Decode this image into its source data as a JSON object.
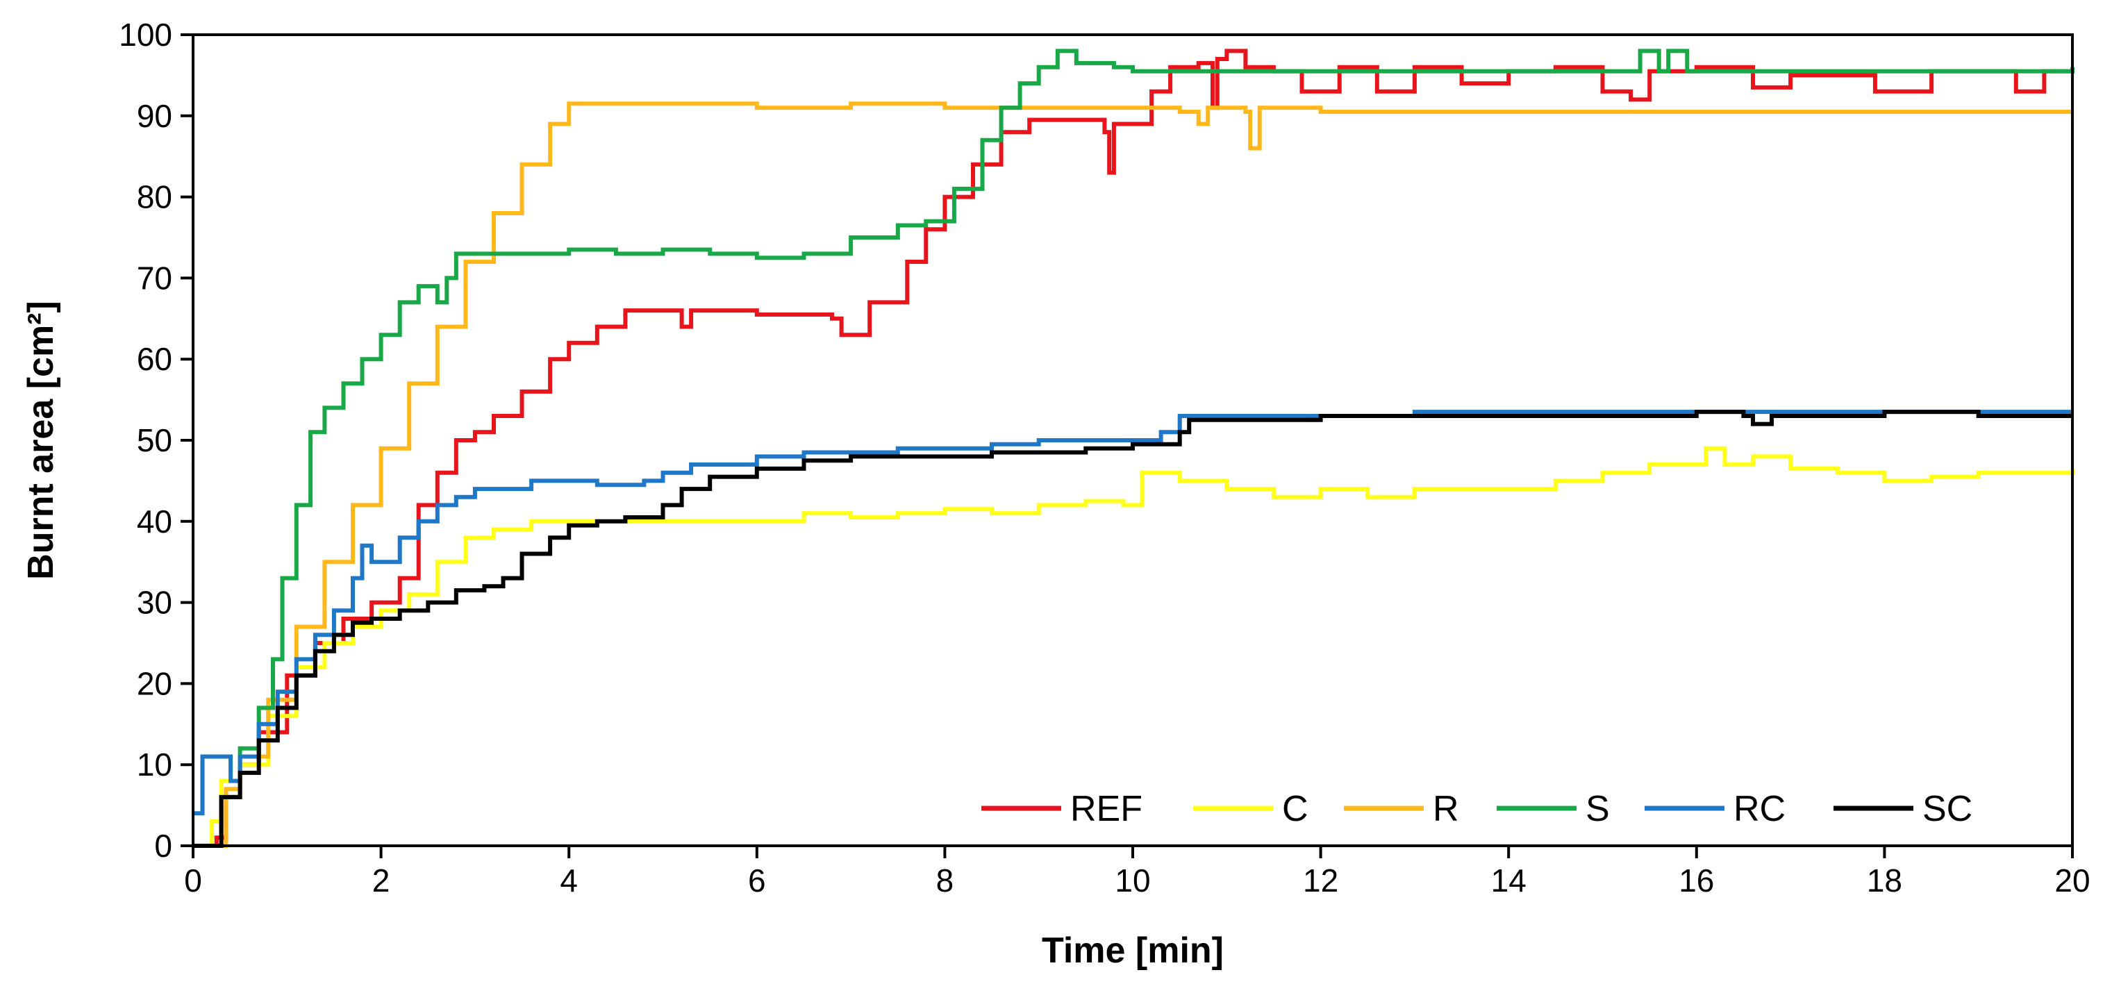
{
  "chart_data": {
    "type": "line",
    "title": "",
    "xlabel": "Time [min]",
    "ylabel": "Burnt area [cm²]",
    "xlim": [
      0,
      20
    ],
    "ylim": [
      0,
      100
    ],
    "xticks": [
      0,
      2,
      4,
      6,
      8,
      10,
      12,
      14,
      16,
      18,
      20
    ],
    "yticks": [
      0,
      10,
      20,
      30,
      40,
      50,
      60,
      70,
      80,
      90,
      100
    ],
    "grid": false,
    "legend_position": "bottom-right",
    "series": [
      {
        "name": "REF",
        "color": "#e8141c",
        "points": [
          [
            0.0,
            0
          ],
          [
            0.25,
            1
          ],
          [
            0.35,
            6
          ],
          [
            0.5,
            10
          ],
          [
            0.7,
            14
          ],
          [
            1.0,
            21
          ],
          [
            1.3,
            25
          ],
          [
            1.6,
            28
          ],
          [
            1.9,
            30
          ],
          [
            2.2,
            33
          ],
          [
            2.4,
            42
          ],
          [
            2.6,
            46
          ],
          [
            2.8,
            50
          ],
          [
            3.0,
            51
          ],
          [
            3.2,
            53
          ],
          [
            3.5,
            56
          ],
          [
            3.8,
            60
          ],
          [
            4.0,
            62
          ],
          [
            4.3,
            64
          ],
          [
            4.6,
            66
          ],
          [
            5.0,
            66
          ],
          [
            5.2,
            64
          ],
          [
            5.3,
            66
          ],
          [
            6.0,
            65.5
          ],
          [
            6.6,
            65.5
          ],
          [
            6.8,
            65
          ],
          [
            6.9,
            63
          ],
          [
            7.1,
            63
          ],
          [
            7.2,
            67
          ],
          [
            7.4,
            67
          ],
          [
            7.6,
            72
          ],
          [
            7.8,
            76
          ],
          [
            8.0,
            80
          ],
          [
            8.3,
            84
          ],
          [
            8.6,
            88
          ],
          [
            8.9,
            89.5
          ],
          [
            9.5,
            89.5
          ],
          [
            9.7,
            88
          ],
          [
            9.75,
            83
          ],
          [
            9.8,
            89
          ],
          [
            10.0,
            89
          ],
          [
            10.2,
            93
          ],
          [
            10.4,
            96
          ],
          [
            10.7,
            96.5
          ],
          [
            10.85,
            91
          ],
          [
            10.9,
            97
          ],
          [
            11.0,
            98
          ],
          [
            11.2,
            96
          ],
          [
            11.5,
            95.5
          ],
          [
            11.8,
            93
          ],
          [
            12.2,
            96
          ],
          [
            12.6,
            93
          ],
          [
            13.0,
            96
          ],
          [
            13.5,
            94
          ],
          [
            14.0,
            95.5
          ],
          [
            14.5,
            96
          ],
          [
            15.0,
            93
          ],
          [
            15.3,
            92
          ],
          [
            15.5,
            95.5
          ],
          [
            16.0,
            96
          ],
          [
            16.6,
            93.5
          ],
          [
            17.0,
            95
          ],
          [
            17.5,
            95
          ],
          [
            17.9,
            93
          ],
          [
            18.5,
            95.5
          ],
          [
            19.0,
            95.5
          ],
          [
            19.4,
            93
          ],
          [
            19.7,
            95.5
          ],
          [
            20.0,
            95.5
          ]
        ]
      },
      {
        "name": "C",
        "color": "#ffff1a",
        "points": [
          [
            0.0,
            0
          ],
          [
            0.2,
            3
          ],
          [
            0.3,
            8
          ],
          [
            0.5,
            10
          ],
          [
            0.8,
            16
          ],
          [
            1.1,
            22
          ],
          [
            1.4,
            25
          ],
          [
            1.7,
            27
          ],
          [
            2.0,
            29
          ],
          [
            2.3,
            31
          ],
          [
            2.6,
            35
          ],
          [
            2.9,
            38
          ],
          [
            3.2,
            39
          ],
          [
            3.6,
            40
          ],
          [
            4.0,
            40
          ],
          [
            4.5,
            40
          ],
          [
            5.0,
            40
          ],
          [
            5.5,
            40
          ],
          [
            6.0,
            40
          ],
          [
            6.5,
            41
          ],
          [
            7.0,
            40.5
          ],
          [
            7.5,
            41
          ],
          [
            8.0,
            41.5
          ],
          [
            8.5,
            41
          ],
          [
            9.0,
            42
          ],
          [
            9.5,
            42.5
          ],
          [
            9.9,
            42
          ],
          [
            10.1,
            46
          ],
          [
            10.5,
            45
          ],
          [
            11.0,
            44
          ],
          [
            11.5,
            43
          ],
          [
            12.0,
            44
          ],
          [
            12.5,
            43
          ],
          [
            13.0,
            44
          ],
          [
            13.5,
            44
          ],
          [
            14.0,
            44
          ],
          [
            14.5,
            45
          ],
          [
            15.0,
            46
          ],
          [
            15.5,
            47
          ],
          [
            16.0,
            47
          ],
          [
            16.1,
            49
          ],
          [
            16.3,
            47
          ],
          [
            16.6,
            48
          ],
          [
            17.0,
            46.5
          ],
          [
            17.5,
            46
          ],
          [
            18.0,
            45
          ],
          [
            18.5,
            45.5
          ],
          [
            19.0,
            46
          ],
          [
            19.5,
            46
          ],
          [
            20.0,
            46.5
          ]
        ]
      },
      {
        "name": "R",
        "color": "#ffb81c",
        "points": [
          [
            0.0,
            0
          ],
          [
            0.25,
            0
          ],
          [
            0.35,
            7
          ],
          [
            0.5,
            11
          ],
          [
            0.8,
            18
          ],
          [
            1.1,
            27
          ],
          [
            1.4,
            35
          ],
          [
            1.7,
            42
          ],
          [
            2.0,
            49
          ],
          [
            2.3,
            57
          ],
          [
            2.6,
            64
          ],
          [
            2.9,
            72
          ],
          [
            3.2,
            78
          ],
          [
            3.5,
            84
          ],
          [
            3.8,
            89
          ],
          [
            4.0,
            91.5
          ],
          [
            4.5,
            91.5
          ],
          [
            5.0,
            91.5
          ],
          [
            6.0,
            91
          ],
          [
            7.0,
            91.5
          ],
          [
            8.0,
            91
          ],
          [
            9.0,
            91
          ],
          [
            10.0,
            91
          ],
          [
            10.5,
            90.5
          ],
          [
            10.7,
            89
          ],
          [
            10.8,
            91
          ],
          [
            11.2,
            90.5
          ],
          [
            11.25,
            86
          ],
          [
            11.35,
            91
          ],
          [
            12.0,
            90.5
          ],
          [
            13.0,
            90.5
          ],
          [
            14.0,
            90.5
          ],
          [
            15.0,
            90.5
          ],
          [
            16.0,
            90.5
          ],
          [
            17.0,
            90.5
          ],
          [
            18.0,
            90.5
          ],
          [
            19.0,
            90.5
          ],
          [
            20.0,
            90.5
          ]
        ]
      },
      {
        "name": "S",
        "color": "#18a848",
        "points": [
          [
            0.0,
            0
          ],
          [
            0.25,
            0
          ],
          [
            0.3,
            6
          ],
          [
            0.5,
            12
          ],
          [
            0.7,
            17
          ],
          [
            0.85,
            23
          ],
          [
            0.95,
            33
          ],
          [
            1.1,
            42
          ],
          [
            1.25,
            51
          ],
          [
            1.4,
            54
          ],
          [
            1.6,
            57
          ],
          [
            1.8,
            60
          ],
          [
            2.0,
            63
          ],
          [
            2.2,
            67
          ],
          [
            2.4,
            69
          ],
          [
            2.55,
            69
          ],
          [
            2.6,
            67
          ],
          [
            2.7,
            70
          ],
          [
            2.8,
            73
          ],
          [
            3.2,
            73
          ],
          [
            3.6,
            73
          ],
          [
            4.0,
            73.5
          ],
          [
            4.5,
            73
          ],
          [
            5.0,
            73.5
          ],
          [
            5.5,
            73
          ],
          [
            6.0,
            72.5
          ],
          [
            6.5,
            73
          ],
          [
            7.0,
            75
          ],
          [
            7.5,
            76.5
          ],
          [
            7.8,
            77
          ],
          [
            8.1,
            81
          ],
          [
            8.4,
            87
          ],
          [
            8.6,
            91
          ],
          [
            8.8,
            94
          ],
          [
            9.0,
            96
          ],
          [
            9.2,
            98
          ],
          [
            9.4,
            96.5
          ],
          [
            9.8,
            96
          ],
          [
            10.0,
            95.5
          ],
          [
            10.5,
            95.5
          ],
          [
            11.0,
            95.5
          ],
          [
            12.0,
            95.5
          ],
          [
            13.0,
            95.5
          ],
          [
            14.0,
            95.5
          ],
          [
            15.0,
            95.5
          ],
          [
            15.3,
            95.5
          ],
          [
            15.4,
            98
          ],
          [
            15.6,
            95.5
          ],
          [
            15.7,
            98
          ],
          [
            15.9,
            95.5
          ],
          [
            16.0,
            95.5
          ],
          [
            17.0,
            95.5
          ],
          [
            18.0,
            95.5
          ],
          [
            19.0,
            95.5
          ],
          [
            20.0,
            96
          ]
        ]
      },
      {
        "name": "RC",
        "color": "#1f77c8",
        "points": [
          [
            0.0,
            4
          ],
          [
            0.1,
            11
          ],
          [
            0.3,
            11
          ],
          [
            0.4,
            8
          ],
          [
            0.5,
            11
          ],
          [
            0.7,
            15
          ],
          [
            0.9,
            19
          ],
          [
            1.1,
            23
          ],
          [
            1.3,
            26
          ],
          [
            1.5,
            29
          ],
          [
            1.7,
            33
          ],
          [
            1.8,
            37
          ],
          [
            1.9,
            35
          ],
          [
            2.1,
            35
          ],
          [
            2.2,
            38
          ],
          [
            2.4,
            40
          ],
          [
            2.6,
            42
          ],
          [
            2.8,
            43
          ],
          [
            3.0,
            44
          ],
          [
            3.3,
            44
          ],
          [
            3.6,
            45
          ],
          [
            4.0,
            45
          ],
          [
            4.3,
            44.5
          ],
          [
            4.8,
            45
          ],
          [
            5.0,
            46
          ],
          [
            5.3,
            47
          ],
          [
            5.6,
            47
          ],
          [
            6.0,
            48
          ],
          [
            6.5,
            48.5
          ],
          [
            7.0,
            48.5
          ],
          [
            7.5,
            49
          ],
          [
            8.0,
            49
          ],
          [
            8.5,
            49.5
          ],
          [
            9.0,
            50
          ],
          [
            9.5,
            50
          ],
          [
            10.0,
            50
          ],
          [
            10.3,
            51
          ],
          [
            10.5,
            53
          ],
          [
            11.0,
            53
          ],
          [
            11.5,
            53
          ],
          [
            12.0,
            53
          ],
          [
            13.0,
            53.5
          ],
          [
            14.0,
            53.5
          ],
          [
            15.0,
            53.5
          ],
          [
            16.0,
            53.5
          ],
          [
            17.0,
            53.5
          ],
          [
            18.0,
            53.5
          ],
          [
            19.0,
            53.5
          ],
          [
            20.0,
            53.5
          ]
        ]
      },
      {
        "name": "SC",
        "color": "#000000",
        "points": [
          [
            0.0,
            0
          ],
          [
            0.25,
            0
          ],
          [
            0.3,
            6
          ],
          [
            0.5,
            9
          ],
          [
            0.7,
            13
          ],
          [
            0.9,
            17
          ],
          [
            1.1,
            21
          ],
          [
            1.3,
            24
          ],
          [
            1.5,
            26
          ],
          [
            1.7,
            27.5
          ],
          [
            1.9,
            28
          ],
          [
            2.2,
            29
          ],
          [
            2.5,
            30
          ],
          [
            2.8,
            31.5
          ],
          [
            3.1,
            32
          ],
          [
            3.3,
            33
          ],
          [
            3.5,
            36
          ],
          [
            3.8,
            38
          ],
          [
            4.0,
            39.5
          ],
          [
            4.3,
            40
          ],
          [
            4.6,
            40.5
          ],
          [
            5.0,
            42
          ],
          [
            5.2,
            44
          ],
          [
            5.5,
            45.5
          ],
          [
            6.0,
            46.5
          ],
          [
            6.5,
            47.5
          ],
          [
            7.0,
            48
          ],
          [
            7.5,
            48
          ],
          [
            8.0,
            48
          ],
          [
            8.5,
            48.5
          ],
          [
            9.0,
            48.5
          ],
          [
            9.5,
            49
          ],
          [
            10.0,
            49.5
          ],
          [
            10.5,
            51
          ],
          [
            10.6,
            52.5
          ],
          [
            11.0,
            52.5
          ],
          [
            12.0,
            53
          ],
          [
            13.0,
            53
          ],
          [
            14.0,
            53
          ],
          [
            15.0,
            53
          ],
          [
            16.0,
            53.5
          ],
          [
            16.5,
            53
          ],
          [
            16.6,
            52
          ],
          [
            16.8,
            53
          ],
          [
            17.0,
            53
          ],
          [
            18.0,
            53.5
          ],
          [
            18.5,
            53.5
          ],
          [
            19.0,
            53
          ],
          [
            20.0,
            53
          ]
        ]
      }
    ]
  }
}
